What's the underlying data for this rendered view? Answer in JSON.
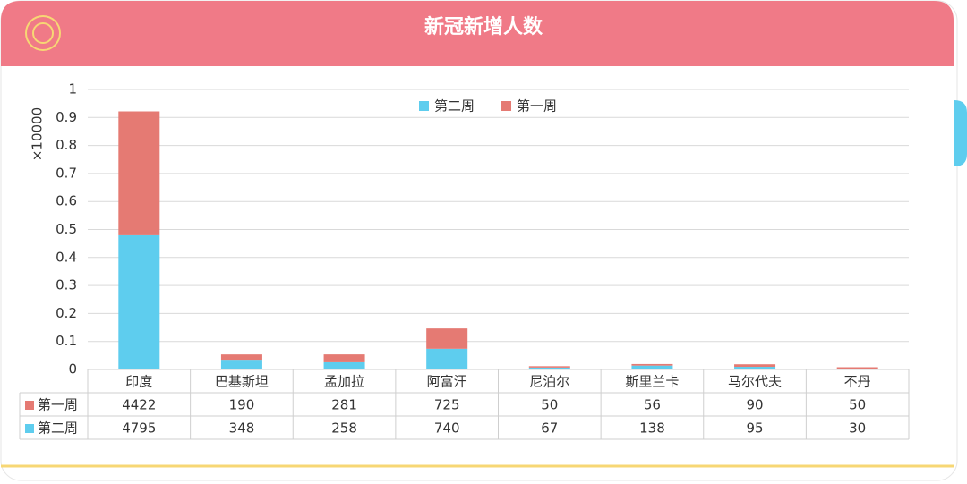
{
  "chart_data": {
    "type": "bar",
    "stacked": true,
    "title": "新冠新增人数",
    "y_label": "×10000",
    "categories": [
      "印度",
      "巴基斯坦",
      "孟加拉",
      "阿富汗",
      "尼泊尔",
      "斯里兰卡",
      "马尔代夫",
      "不丹"
    ],
    "series": [
      {
        "name": "第二周",
        "color": "#5ecdee",
        "values": [
          0.4795,
          0.0348,
          0.0258,
          0.074,
          0.0067,
          0.0138,
          0.0095,
          0.003
        ],
        "value_labels": [
          "4795",
          "348",
          "258",
          "740",
          "67",
          "138",
          "95",
          "30"
        ]
      },
      {
        "name": "第一周",
        "color": "#e57a73",
        "values": [
          0.4422,
          0.019,
          0.0281,
          0.0725,
          0.005,
          0.0056,
          0.009,
          0.005
        ],
        "value_labels": [
          "4422",
          "190",
          "281",
          "725",
          "50",
          "56",
          "90",
          "50"
        ]
      }
    ],
    "ylim": [
      0,
      1
    ],
    "yticks": [
      0,
      0.1,
      0.2,
      0.3,
      0.4,
      0.5,
      0.6,
      0.7,
      0.8,
      0.9,
      1
    ],
    "grid": true,
    "legend": "top",
    "data_table": true
  }
}
